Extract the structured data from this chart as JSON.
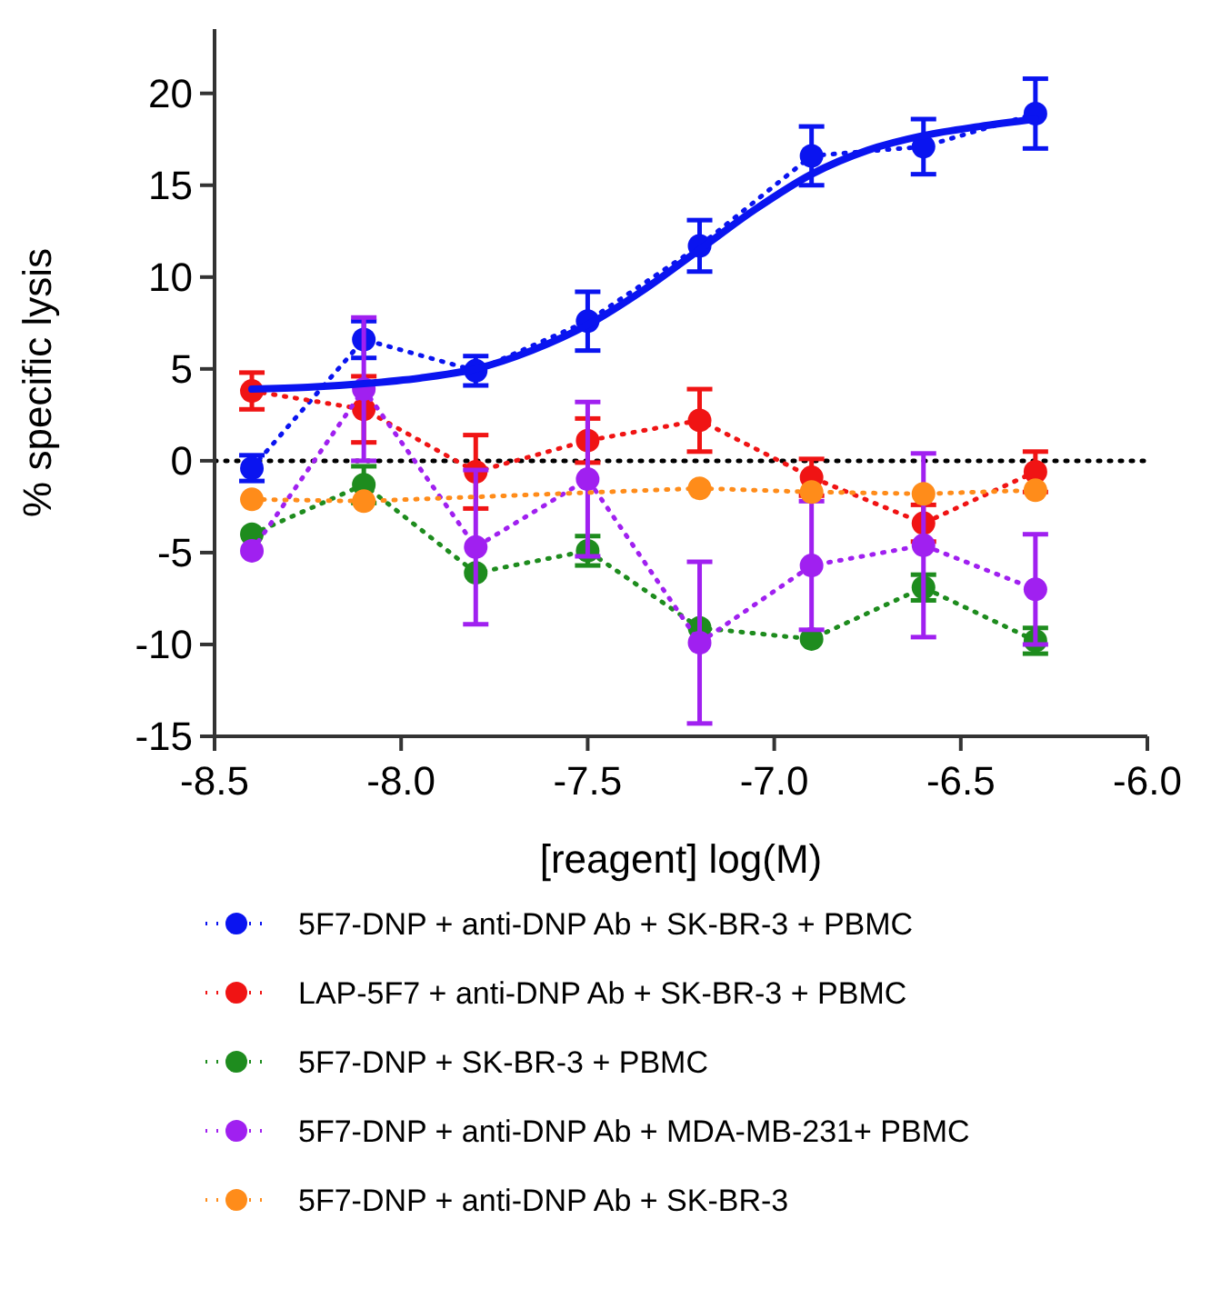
{
  "chart_data": {
    "type": "line",
    "xlabel": "[reagent] log(M)",
    "ylabel": "% specific lysis",
    "xlim": [
      -8.5,
      -6.0
    ],
    "xticks": [
      -8.5,
      {
        "value": -8,
        "label": "-8.0"
      },
      -7.5,
      {
        "value": -7,
        "label": "-7.0"
      },
      -6.5,
      {
        "value": -6,
        "label": "-6.0"
      }
    ],
    "ylim": [
      -15,
      23.5
    ],
    "yticks": [
      -15,
      -10,
      -5,
      0,
      5,
      10,
      15,
      20
    ],
    "x": [
      -8.4,
      -8.1,
      -7.8,
      -7.5,
      -7.2,
      -6.9,
      -6.6,
      -6.3
    ],
    "marker": "circle",
    "line_style": "dotted",
    "legend": "bottom",
    "grid": false,
    "ref_lines": [
      {
        "axis": "y",
        "value": 0,
        "color": "#000000",
        "line_style": "dotted"
      }
    ],
    "series": [
      {
        "name": "5F7-DNP + anti-DNP Ab + SK-BR-3 + PBMC",
        "color": "#0a14f0",
        "values": [
          -0.4,
          6.6,
          4.9,
          7.6,
          11.7,
          16.6,
          17.1,
          18.9
        ],
        "errors": [
          0.7,
          1,
          0.8,
          1.6,
          1.4,
          1.6,
          1.5,
          1.9
        ]
      },
      {
        "name": "LAP-5F7 + anti-DNP Ab + SK-BR-3 + PBMC",
        "color": "#f01414",
        "values": [
          3.8,
          2.8,
          -0.6,
          1.1,
          2.2,
          -0.9,
          -3.4,
          -0.6
        ],
        "errors": [
          1,
          1.8,
          2,
          1.2,
          1.7,
          1,
          1,
          1.1
        ]
      },
      {
        "name": "5F7-DNP + SK-BR-3 + PBMC",
        "color": "#1e8c1e",
        "values": [
          -4,
          -1.3,
          -6.1,
          -4.9,
          -9.1,
          -9.7,
          -6.9,
          -9.8
        ],
        "errors": [
          null,
          1,
          null,
          0.8,
          null,
          null,
          0.7,
          0.7
        ]
      },
      {
        "name": "5F7-DNP + anti-DNP Ab + MDA-MB-231+ PBMC",
        "color": "#a020f0",
        "values": [
          -4.9,
          3.9,
          -4.7,
          -1,
          -9.9,
          -5.7,
          -4.6,
          -7
        ],
        "errors": [
          null,
          3.9,
          4.2,
          4.2,
          4.4,
          3.5,
          5,
          3
        ]
      },
      {
        "name": "5F7-DNP + anti-DNP Ab + SK-BR-3",
        "color": "#ff8c1a",
        "values": [
          -2.1,
          -2.2,
          null,
          null,
          -1.5,
          -1.7,
          -1.8,
          -1.6
        ]
      },
      {
        "type": "line",
        "color": "#0a14f0",
        "marker": "none",
        "line_style": "solid",
        "x": [
          -8.4,
          -8.25,
          -8.1,
          -7.95,
          -7.8,
          -7.65,
          -7.5,
          -7.35,
          -7.2,
          -7.05,
          -6.9,
          -6.75,
          -6.6,
          -6.45,
          -6.3
        ],
        "values": [
          3.9,
          4.0,
          4.2,
          4.5,
          5.0,
          6.0,
          7.4,
          9.3,
          11.5,
          13.7,
          15.6,
          16.9,
          17.7,
          18.2,
          18.6
        ]
      }
    ]
  }
}
